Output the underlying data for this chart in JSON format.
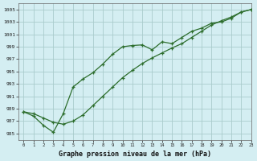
{
  "xlabel": "Graphe pression niveau de la mer (hPa)",
  "bg_color": "#d4eef2",
  "grid_color": "#aacccc",
  "line_color": "#2d6e2d",
  "ylim": [
    984,
    1006
  ],
  "xlim": [
    -0.5,
    23
  ],
  "yticks": [
    985,
    987,
    989,
    991,
    993,
    995,
    997,
    999,
    1001,
    1003,
    1005
  ],
  "xticks": [
    0,
    1,
    2,
    3,
    4,
    5,
    6,
    7,
    8,
    9,
    10,
    11,
    12,
    13,
    14,
    15,
    16,
    17,
    18,
    19,
    20,
    21,
    22,
    23
  ],
  "series1_x": [
    0,
    1,
    2,
    3,
    4,
    5,
    6,
    7,
    8,
    9,
    10,
    11,
    12,
    13,
    14,
    15,
    16,
    17,
    18,
    19,
    20,
    21,
    22,
    23
  ],
  "series1_y": [
    988.5,
    987.8,
    986.3,
    985.2,
    988.2,
    992.5,
    993.8,
    994.8,
    996.2,
    997.8,
    999.0,
    999.2,
    999.3,
    998.5,
    999.8,
    999.5,
    1000.5,
    1001.5,
    1002.0,
    1002.8,
    1003.0,
    1003.6,
    1004.6,
    1005.0
  ],
  "series2_x": [
    0,
    1,
    2,
    3,
    4,
    5,
    6,
    7,
    8,
    9,
    10,
    11,
    12,
    13,
    14,
    15,
    16,
    17,
    18,
    19,
    20,
    21,
    22,
    23
  ],
  "series2_y": [
    988.5,
    988.2,
    987.5,
    986.8,
    986.5,
    987.0,
    988.0,
    989.5,
    991.0,
    992.5,
    994.0,
    995.2,
    996.3,
    997.2,
    998.0,
    998.8,
    999.5,
    1000.5,
    1001.5,
    1002.5,
    1003.2,
    1003.8,
    1004.6,
    1005.0
  ]
}
